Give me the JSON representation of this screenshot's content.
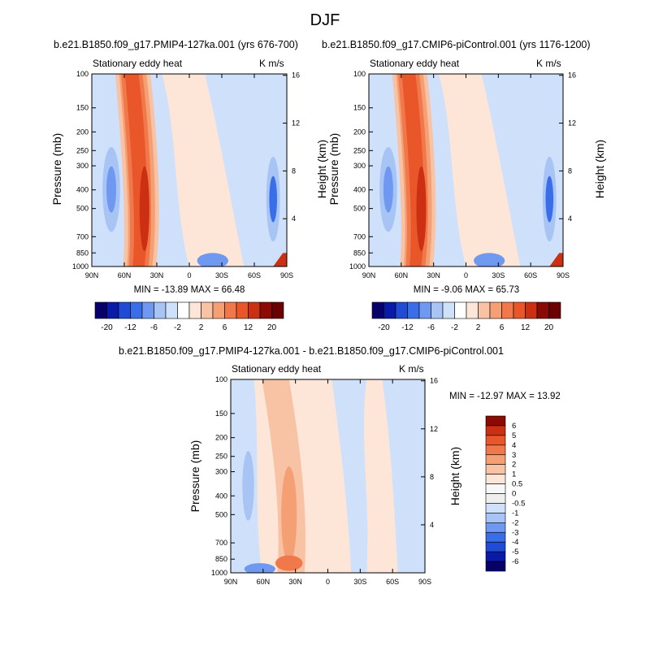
{
  "title": "DJF",
  "colors": {
    "neg6": "#08006a",
    "neg5": "#0a1aa8",
    "neg4": "#1f4bd6",
    "neg3": "#3a6ee8",
    "neg2": "#6f98f0",
    "neg1": "#a7c4f5",
    "neg05": "#cfe1fa",
    "zero": "#eeeeee",
    "pos05": "#fde6d8",
    "pos1": "#f8c3a4",
    "pos2": "#f59f74",
    "pos3": "#f0784a",
    "pos4": "#e8562a",
    "pos5": "#cc3012",
    "pos6": "#8a0a04"
  },
  "panels": [
    {
      "run": "b.e21.B1850.f09_g17.PMIP4-127ka.001 (yrs 676-700)",
      "field": "Stationary eddy heat",
      "units": "K m/s",
      "min_max": "MIN = -13.89  MAX = 66.48"
    },
    {
      "run": "b.e21.B1850.f09_g17.CMIP6-piControl.001 (yrs 1176-1200)",
      "field": "Stationary eddy heat",
      "units": "K m/s",
      "min_max": "MIN = -9.06  MAX = 65.73"
    },
    {
      "run": "b.e21.B1850.f09_g17.PMIP4-127ka.001 - b.e21.B1850.f09_g17.CMIP6-piControl.001",
      "field": "Stationary eddy heat",
      "units": "K m/s",
      "min_max": "MIN = -12.97  MAX = 13.92"
    }
  ],
  "chart_data": [
    {
      "type": "heatmap",
      "xlabel": "",
      "ylabel": "Pressure (mb)",
      "y2label": "Height (km)",
      "x_ticks": [
        "90N",
        "60N",
        "30N",
        "0",
        "30S",
        "60S",
        "90S"
      ],
      "y_ticks": [
        "100",
        "150",
        "200",
        "250",
        "300",
        "400",
        "500",
        "700",
        "850",
        "1000"
      ],
      "y2_ticks": [
        "16",
        "12",
        "8",
        "4"
      ],
      "colorbar_labels": [
        "-20",
        "-12",
        "-6",
        "-2",
        "2",
        "6",
        "12",
        "20"
      ],
      "min": -13.89,
      "max": 66.48
    },
    {
      "type": "heatmap",
      "xlabel": "",
      "ylabel": "Pressure (mb)",
      "y2label": "Height (km)",
      "x_ticks": [
        "90N",
        "60N",
        "30N",
        "0",
        "30S",
        "60S",
        "90S"
      ],
      "y_ticks": [
        "100",
        "150",
        "200",
        "250",
        "300",
        "400",
        "500",
        "700",
        "850",
        "1000"
      ],
      "y2_ticks": [
        "16",
        "12",
        "8",
        "4"
      ],
      "colorbar_labels": [
        "-20",
        "-12",
        "-6",
        "-2",
        "2",
        "6",
        "12",
        "20"
      ],
      "min": -9.06,
      "max": 65.73
    },
    {
      "type": "heatmap",
      "xlabel": "",
      "ylabel": "Pressure (mb)",
      "y2label": "Height (km)",
      "x_ticks": [
        "90N",
        "60N",
        "30N",
        "0",
        "30S",
        "60S",
        "90S"
      ],
      "y_ticks": [
        "100",
        "150",
        "200",
        "250",
        "300",
        "400",
        "500",
        "700",
        "850",
        "1000"
      ],
      "y2_ticks": [
        "16",
        "12",
        "8",
        "4"
      ],
      "colorbar_labels": [
        "6",
        "5",
        "4",
        "3",
        "2",
        "1",
        "0.5",
        "0",
        "-0.5",
        "-1",
        "-2",
        "-3",
        "-4",
        "-5",
        "-6"
      ],
      "min": -12.97,
      "max": 13.92
    }
  ]
}
